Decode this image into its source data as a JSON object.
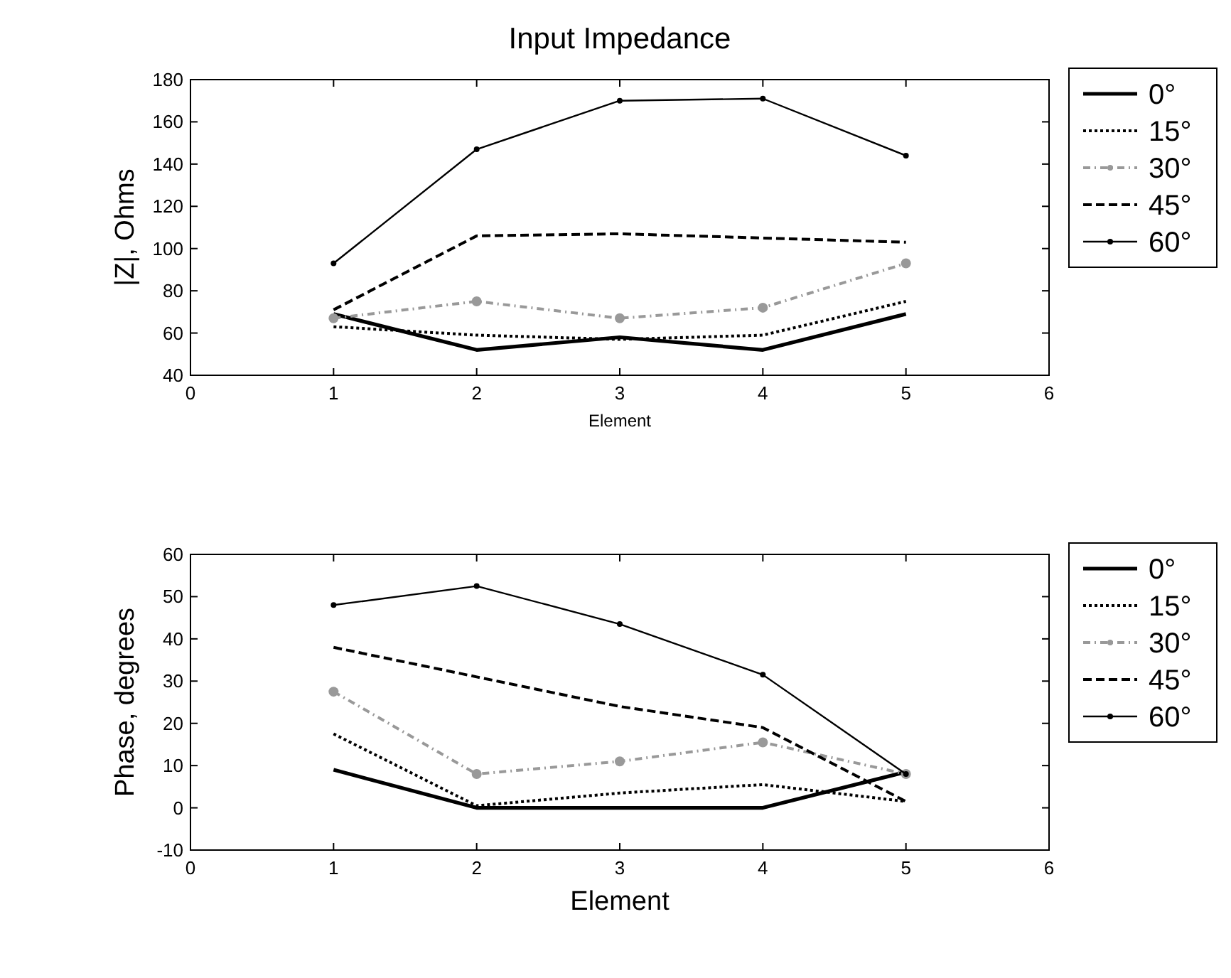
{
  "chart_data": [
    {
      "type": "line",
      "title": "Input Impedance",
      "xlabel": "Element",
      "ylabel": "|Z|, Ohms",
      "x": [
        1,
        2,
        3,
        4,
        5
      ],
      "xlim": [
        0,
        6
      ],
      "xticks": [
        0,
        1,
        2,
        3,
        4,
        5,
        6
      ],
      "ylim": [
        40,
        180
      ],
      "yticks": [
        40,
        60,
        80,
        100,
        120,
        140,
        160,
        180
      ],
      "grid": false,
      "legend": "top right",
      "series": [
        {
          "name": "0°",
          "color": "#000000",
          "line_style": "solid",
          "marker": "none",
          "values": [
            69,
            52,
            58,
            52,
            69
          ]
        },
        {
          "name": "15°",
          "color": "#000000",
          "line_style": "dotted",
          "marker": "none",
          "values": [
            63,
            59,
            57,
            59,
            75
          ]
        },
        {
          "name": "30°",
          "color": "#999999",
          "line_style": "dashed",
          "marker": "circle",
          "values": [
            67,
            75,
            67,
            72,
            93
          ]
        },
        {
          "name": "45°",
          "color": "#000000",
          "line_style": "dashed",
          "marker": "none",
          "values": [
            71,
            106,
            107,
            105,
            103
          ]
        },
        {
          "name": "60°",
          "color": "#000000",
          "line_style": "solid",
          "marker": "circle",
          "values": [
            93,
            147,
            170,
            171,
            144
          ]
        }
      ]
    },
    {
      "type": "line",
      "xlabel": "Element",
      "ylabel": "Phase, degrees",
      "x": [
        1,
        2,
        3,
        4,
        5
      ],
      "xlim": [
        0,
        6
      ],
      "xticks": [
        0,
        1,
        2,
        3,
        4,
        5,
        6
      ],
      "ylim": [
        -10,
        60
      ],
      "yticks": [
        -10,
        0,
        10,
        20,
        30,
        40,
        50,
        60
      ],
      "grid": false,
      "legend": "top right",
      "series": [
        {
          "name": "0°",
          "color": "#000000",
          "line_style": "solid",
          "marker": "none",
          "values": [
            9,
            0,
            0,
            0,
            8.5
          ]
        },
        {
          "name": "15°",
          "color": "#000000",
          "line_style": "dotted",
          "marker": "none",
          "values": [
            17.5,
            0.5,
            3.5,
            5.5,
            1.5
          ]
        },
        {
          "name": "30°",
          "color": "#999999",
          "line_style": "dashed",
          "marker": "circle",
          "values": [
            27.5,
            8,
            11,
            15.5,
            8
          ]
        },
        {
          "name": "45°",
          "color": "#000000",
          "line_style": "dashed",
          "marker": "none",
          "values": [
            38,
            31,
            24,
            19,
            1.5
          ]
        },
        {
          "name": "60°",
          "color": "#000000",
          "line_style": "solid",
          "marker": "circle",
          "values": [
            48,
            52.5,
            43.5,
            31.5,
            8
          ]
        }
      ]
    }
  ]
}
